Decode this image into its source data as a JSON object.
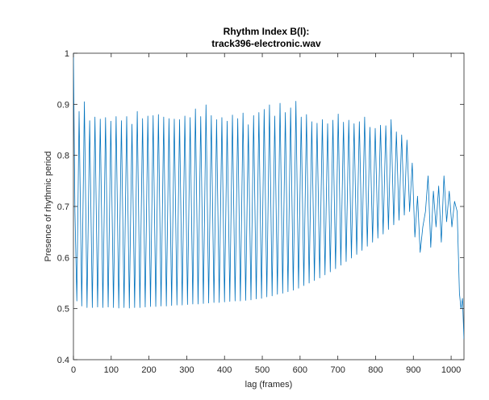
{
  "chart_data": {
    "type": "line",
    "title_lines": [
      "Rhythm Index B(l):",
      "track396-electronic.wav"
    ],
    "xlabel": "lag (frames)",
    "ylabel": "Presence of rhythmic period",
    "xlim": [
      0,
      1034
    ],
    "ylim": [
      0.4,
      1.0
    ],
    "x_ticks": [
      0,
      100,
      200,
      300,
      400,
      500,
      600,
      700,
      800,
      900,
      1000
    ],
    "y_ticks": [
      0.4,
      0.5,
      0.6,
      0.7,
      0.8,
      0.9,
      1.0
    ],
    "x_tick_labels": [
      "0",
      "100",
      "200",
      "300",
      "400",
      "500",
      "600",
      "700",
      "800",
      "900",
      "1000"
    ],
    "y_tick_labels": [
      "0.4",
      "0.5",
      "0.6",
      "0.7",
      "0.8",
      "0.9",
      "1"
    ],
    "grid": false,
    "series": [
      {
        "color": "#0072BD",
        "x": [
          0,
          4,
          9,
          15,
          22,
          29,
          36,
          43,
          50,
          57,
          64,
          71,
          78,
          85,
          92,
          99,
          106,
          113,
          120,
          127,
          134,
          141,
          148,
          155,
          162,
          169,
          176,
          183,
          190,
          197,
          204,
          211,
          218,
          225,
          232,
          239,
          246,
          253,
          260,
          267,
          274,
          281,
          288,
          295,
          302,
          309,
          316,
          323,
          330,
          337,
          344,
          351,
          358,
          365,
          372,
          379,
          386,
          393,
          400,
          407,
          414,
          421,
          428,
          435,
          442,
          449,
          456,
          463,
          470,
          477,
          484,
          491,
          498,
          505,
          512,
          519,
          526,
          533,
          540,
          547,
          554,
          561,
          568,
          575,
          582,
          589,
          596,
          603,
          610,
          617,
          624,
          631,
          638,
          645,
          652,
          659,
          666,
          673,
          680,
          687,
          694,
          701,
          708,
          715,
          722,
          729,
          736,
          743,
          750,
          757,
          764,
          771,
          778,
          785,
          792,
          799,
          806,
          813,
          820,
          827,
          834,
          841,
          848,
          855,
          862,
          869,
          876,
          883,
          890,
          897,
          904,
          911,
          918,
          925,
          932,
          939,
          946,
          953,
          960,
          967,
          974,
          981,
          988,
          995,
          1002,
          1009,
          1016,
          1022,
          1026,
          1030,
          1034
        ],
        "y": [
          1.0,
          0.69,
          0.515,
          0.886,
          0.505,
          0.905,
          0.502,
          0.868,
          0.502,
          0.875,
          0.503,
          0.871,
          0.502,
          0.874,
          0.503,
          0.867,
          0.502,
          0.876,
          0.501,
          0.868,
          0.502,
          0.876,
          0.501,
          0.861,
          0.502,
          0.886,
          0.502,
          0.872,
          0.503,
          0.877,
          0.504,
          0.878,
          0.504,
          0.88,
          0.505,
          0.875,
          0.505,
          0.872,
          0.506,
          0.871,
          0.507,
          0.87,
          0.507,
          0.877,
          0.508,
          0.874,
          0.509,
          0.891,
          0.509,
          0.876,
          0.51,
          0.899,
          0.511,
          0.878,
          0.512,
          0.87,
          0.512,
          0.874,
          0.513,
          0.867,
          0.514,
          0.879,
          0.515,
          0.872,
          0.515,
          0.883,
          0.516,
          0.86,
          0.517,
          0.878,
          0.519,
          0.884,
          0.52,
          0.89,
          0.523,
          0.899,
          0.525,
          0.877,
          0.528,
          0.902,
          0.53,
          0.884,
          0.533,
          0.893,
          0.536,
          0.906,
          0.54,
          0.875,
          0.545,
          0.88,
          0.55,
          0.866,
          0.555,
          0.863,
          0.56,
          0.87,
          0.566,
          0.862,
          0.572,
          0.869,
          0.578,
          0.881,
          0.585,
          0.865,
          0.592,
          0.869,
          0.599,
          0.862,
          0.606,
          0.866,
          0.614,
          0.875,
          0.622,
          0.855,
          0.63,
          0.853,
          0.638,
          0.859,
          0.646,
          0.858,
          0.655,
          0.87,
          0.664,
          0.846,
          0.673,
          0.84,
          0.683,
          0.83,
          0.69,
          0.785,
          0.64,
          0.72,
          0.61,
          0.66,
          0.69,
          0.76,
          0.62,
          0.73,
          0.66,
          0.74,
          0.63,
          0.76,
          0.67,
          0.73,
          0.66,
          0.71,
          0.69,
          0.53,
          0.5,
          0.52,
          0.44
        ]
      }
    ]
  }
}
